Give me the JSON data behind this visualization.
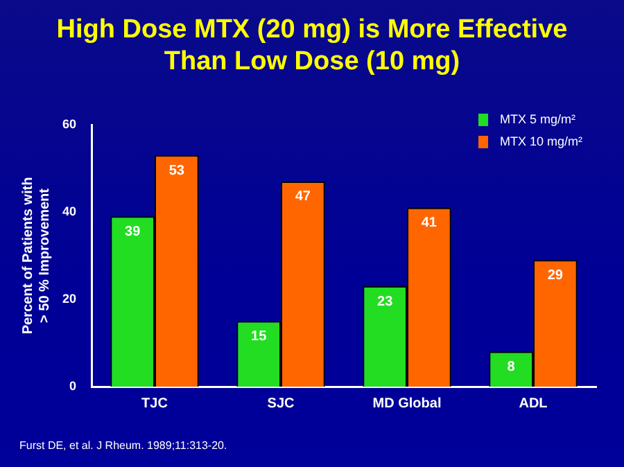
{
  "chart_data": {
    "type": "bar",
    "title": "High Dose MTX (20 mg) is More Effective Than Low Dose (10 mg)",
    "ylabel": "Percent of Patients with\n> 50 % Improvement",
    "categories": [
      "TJC",
      "SJC",
      "MD Global",
      "ADL"
    ],
    "series": [
      {
        "name": "MTX 5 mg/m²",
        "color": "#22dd22",
        "values": [
          39,
          15,
          23,
          8
        ]
      },
      {
        "name": "MTX 10 mg/m²",
        "color": "#ff6600",
        "values": [
          53,
          47,
          41,
          29
        ]
      }
    ],
    "ylim": [
      0,
      60
    ],
    "yticks": [
      0,
      20,
      40,
      60
    ],
    "grid": false,
    "legend": "top right",
    "data_labels": true,
    "annotations": [
      "Furst DE, et al. J Rheum. 1989;11:313-20."
    ]
  }
}
